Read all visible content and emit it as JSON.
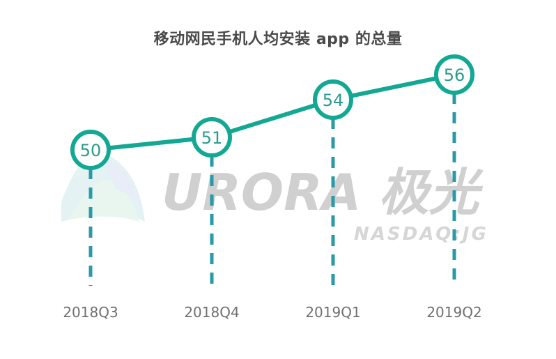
{
  "chart_data": {
    "type": "line",
    "title": "移动网民手机人均安装 app 的总量",
    "categories": [
      "2018Q3",
      "2018Q4",
      "2019Q1",
      "2019Q2"
    ],
    "series": [
      {
        "values": [
          50,
          51,
          54,
          56
        ]
      }
    ],
    "data_labels": [
      "50",
      "51",
      "54",
      "56"
    ],
    "xlabel": "",
    "ylabel": "",
    "ylim": [
      40,
      60
    ],
    "grid": false,
    "legend": "none",
    "line_color": "#12a893",
    "marker_fill": "#ffffff",
    "dropline_color": "#2b9aa8",
    "label_color": "#2b9a8f"
  },
  "watermark": {
    "brand": "URORA 极光",
    "sub": "NASDAQ:JG",
    "color": "#d0d0d0"
  }
}
